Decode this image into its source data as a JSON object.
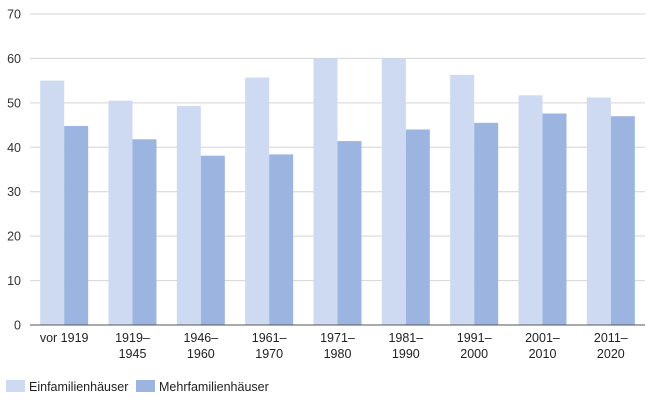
{
  "chart_data": {
    "type": "bar",
    "categories": [
      [
        "vor 1919"
      ],
      [
        "1919–",
        "1945"
      ],
      [
        "1946–",
        "1960"
      ],
      [
        "1961–",
        "1970"
      ],
      [
        "1971–",
        "1980"
      ],
      [
        "1981–",
        "1990"
      ],
      [
        "1991–",
        "2000"
      ],
      [
        "2001–",
        "2010"
      ],
      [
        "2011–",
        "2020"
      ]
    ],
    "series": [
      {
        "name": "Einfamilienhäuser",
        "color": "#cddaf1",
        "values": [
          55,
          50.5,
          49.3,
          55.7,
          60,
          60,
          56.3,
          51.7,
          51.2
        ]
      },
      {
        "name": "Mehrfamilienhäuser",
        "color": "#9bb5e0",
        "values": [
          44.8,
          41.8,
          38.1,
          38.4,
          41.4,
          44,
          45.5,
          47.6,
          47
        ]
      }
    ],
    "yticks": [
      0,
      10,
      20,
      30,
      40,
      50,
      60,
      70
    ],
    "ylim": [
      0,
      70
    ],
    "grid": true,
    "legend_position": "bottom-left"
  }
}
